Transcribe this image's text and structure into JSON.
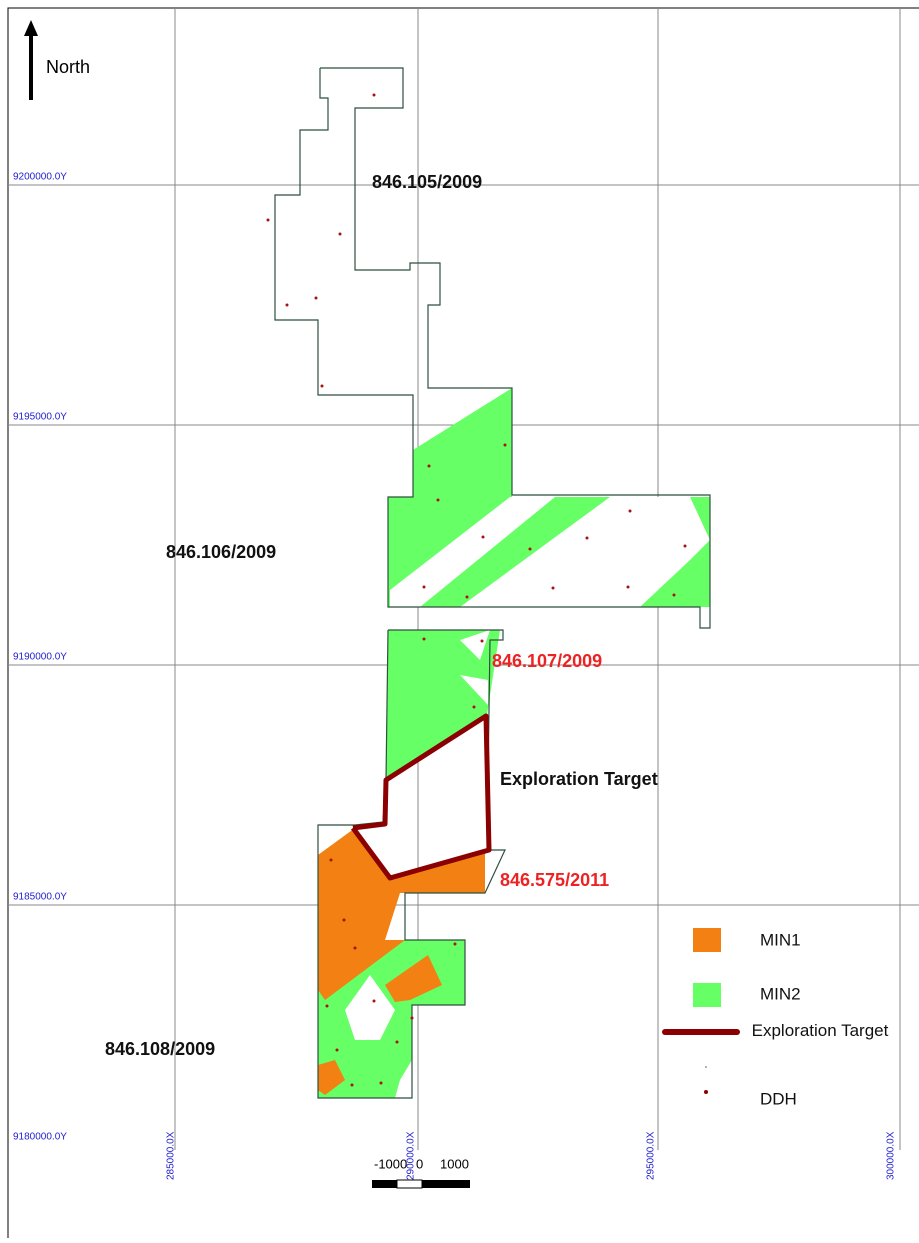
{
  "north": "North",
  "grid": {
    "y_labels": [
      "9200000.0Y",
      "9195000.0Y",
      "9190000.0Y",
      "9185000.0Y",
      "9180000.0Y"
    ],
    "x_labels": [
      "285000.0X",
      "290000.0X",
      "295000.0X",
      "300000.0X"
    ]
  },
  "tenements": [
    "846.105/2009",
    "846.106/2009",
    "846.107/2009",
    "846.575/2011",
    "846.108/2009"
  ],
  "target_label": "Exploration Target",
  "legend": [
    "MIN1",
    "MIN2",
    "Exploration Target",
    "DDH"
  ],
  "scale": [
    "-1000",
    "0",
    "1000"
  ]
}
